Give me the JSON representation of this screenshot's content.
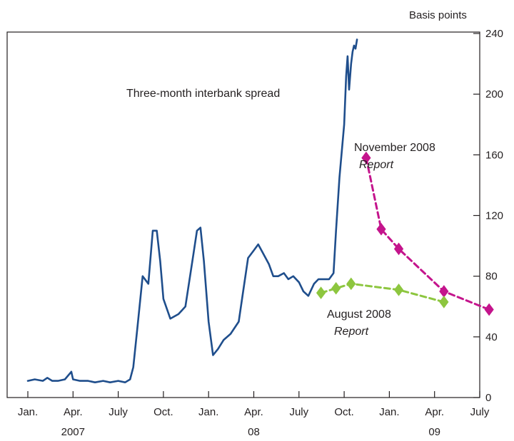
{
  "chart_data": {
    "type": "line",
    "ylabel": "Basis points",
    "ylim": [
      0,
      240
    ],
    "y_ticks": [
      0,
      40,
      80,
      120,
      160,
      200,
      240
    ],
    "y_axis_side": "right",
    "grid": false,
    "x_tick_labels": [
      "Jan.",
      "Apr.",
      "July",
      "Oct.",
      "Jan.",
      "Apr.",
      "July",
      "Oct.",
      "Jan.",
      "Apr.",
      "July"
    ],
    "x_tick_months": [
      "2007-01",
      "2007-04",
      "2007-07",
      "2007-10",
      "2008-01",
      "2008-04",
      "2008-07",
      "2008-10",
      "2009-01",
      "2009-04",
      "2009-07"
    ],
    "year_labels": [
      {
        "label": "2007",
        "month": "2007-04"
      },
      {
        "label": "08",
        "month": "2008-04"
      },
      {
        "label": "09",
        "month": "2009-04"
      }
    ],
    "series": [
      {
        "name": "Three-month interbank spread",
        "color": "#1f4e8c",
        "style": "solid",
        "points": [
          [
            "2007-01-01",
            11
          ],
          [
            "2007-01-15",
            12
          ],
          [
            "2007-02-01",
            11
          ],
          [
            "2007-02-10",
            13
          ],
          [
            "2007-02-20",
            11
          ],
          [
            "2007-03-01",
            11
          ],
          [
            "2007-03-15",
            12
          ],
          [
            "2007-03-28",
            17
          ],
          [
            "2007-04-01",
            12
          ],
          [
            "2007-04-15",
            11
          ],
          [
            "2007-05-01",
            11
          ],
          [
            "2007-05-15",
            10
          ],
          [
            "2007-06-01",
            11
          ],
          [
            "2007-06-15",
            10
          ],
          [
            "2007-07-01",
            11
          ],
          [
            "2007-07-15",
            10
          ],
          [
            "2007-07-25",
            12
          ],
          [
            "2007-08-01",
            20
          ],
          [
            "2007-08-10",
            48
          ],
          [
            "2007-08-20",
            80
          ],
          [
            "2007-09-01",
            75
          ],
          [
            "2007-09-10",
            110
          ],
          [
            "2007-09-18",
            110
          ],
          [
            "2007-09-25",
            90
          ],
          [
            "2007-10-01",
            65
          ],
          [
            "2007-10-15",
            52
          ],
          [
            "2007-11-01",
            55
          ],
          [
            "2007-11-15",
            60
          ],
          [
            "2007-12-01",
            95
          ],
          [
            "2007-12-08",
            110
          ],
          [
            "2007-12-15",
            112
          ],
          [
            "2007-12-22",
            90
          ],
          [
            "2008-01-01",
            50
          ],
          [
            "2008-01-10",
            28
          ],
          [
            "2008-01-20",
            32
          ],
          [
            "2008-02-01",
            38
          ],
          [
            "2008-02-15",
            42
          ],
          [
            "2008-03-01",
            50
          ],
          [
            "2008-03-10",
            70
          ],
          [
            "2008-03-20",
            92
          ],
          [
            "2008-04-01",
            97
          ],
          [
            "2008-04-10",
            101
          ],
          [
            "2008-04-20",
            95
          ],
          [
            "2008-05-01",
            88
          ],
          [
            "2008-05-10",
            80
          ],
          [
            "2008-05-20",
            80
          ],
          [
            "2008-06-01",
            82
          ],
          [
            "2008-06-10",
            78
          ],
          [
            "2008-06-20",
            80
          ],
          [
            "2008-07-01",
            76
          ],
          [
            "2008-07-10",
            70
          ],
          [
            "2008-07-20",
            67
          ],
          [
            "2008-08-01",
            75
          ],
          [
            "2008-08-10",
            78
          ],
          [
            "2008-08-20",
            78
          ],
          [
            "2008-09-01",
            78
          ],
          [
            "2008-09-10",
            82
          ],
          [
            "2008-09-15",
            110
          ],
          [
            "2008-09-22",
            145
          ],
          [
            "2008-10-01",
            180
          ],
          [
            "2008-10-05",
            212
          ],
          [
            "2008-10-08",
            225
          ],
          [
            "2008-10-11",
            203
          ],
          [
            "2008-10-15",
            220
          ],
          [
            "2008-10-18",
            228
          ],
          [
            "2008-10-21",
            232
          ],
          [
            "2008-10-24",
            230
          ],
          [
            "2008-10-27",
            236
          ]
        ]
      },
      {
        "name": "November 2008 Report",
        "color": "#c4148c",
        "style": "dashed",
        "markers": "diamond",
        "points": [
          [
            "2008-11-15",
            158
          ],
          [
            "2008-12-15",
            111
          ],
          [
            "2009-01-20",
            98
          ],
          [
            "2009-04-20",
            70
          ],
          [
            "2009-07-20",
            58
          ]
        ]
      },
      {
        "name": "August 2008 Report",
        "color": "#8dc63f",
        "style": "dashed",
        "markers": "diamond",
        "points": [
          [
            "2008-08-15",
            69
          ],
          [
            "2008-09-15",
            72
          ],
          [
            "2008-10-15",
            75
          ],
          [
            "2009-01-20",
            71
          ],
          [
            "2009-04-20",
            63
          ]
        ]
      }
    ],
    "annotations": [
      {
        "text": "Three-month interbank spread",
        "series": 0
      },
      {
        "text": "November 2008",
        "italic": "Report",
        "series": 1
      },
      {
        "text": "August 2008",
        "italic": "Report",
        "series": 2
      }
    ]
  }
}
